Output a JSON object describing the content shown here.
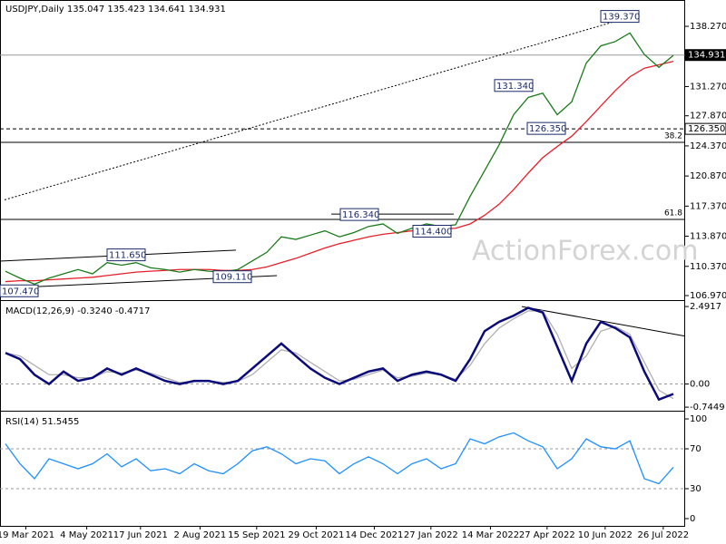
{
  "chart_data": [
    {
      "type": "line",
      "title": "USDJPY,Daily 135.047 135.423 134.641 134.931",
      "watermark": "ActionForex.com",
      "xlim": [
        -0.375,
        46.81
      ],
      "ylim": [
        106.55,
        141.33
      ],
      "yticks": [
        {
          "value": 106.97,
          "label": "106.970"
        },
        {
          "value": 110.37,
          "label": "110.370"
        },
        {
          "value": 113.87,
          "label": "113.870"
        },
        {
          "value": 117.37,
          "label": "117.370"
        },
        {
          "value": 120.87,
          "label": "120.870"
        },
        {
          "value": 124.37,
          "label": "124.370"
        },
        {
          "value": 127.87,
          "label": "127.870"
        },
        {
          "value": 131.27,
          "label": "131.270"
        },
        {
          "value": 134.77,
          "label": "134.770"
        },
        {
          "value": 138.27,
          "label": "138.270"
        }
      ],
      "series": [
        {
          "name": "USDJPY",
          "color": "#1a7a1a",
          "values": [
            109.8,
            109.0,
            108.3,
            109.0,
            109.5,
            110.0,
            109.5,
            110.8,
            110.5,
            110.8,
            110.2,
            110.0,
            109.7,
            110.0,
            109.8,
            109.7,
            110.0,
            111.0,
            112.0,
            113.8,
            113.5,
            114.0,
            114.5,
            113.8,
            114.3,
            115.0,
            115.3,
            114.2,
            114.8,
            115.3,
            115.0,
            115.2,
            118.5,
            121.5,
            124.5,
            128.0,
            130.0,
            130.5,
            128.0,
            129.5,
            134.0,
            136.0,
            136.5,
            137.5,
            135.0,
            133.5,
            134.9
          ]
        },
        {
          "name": "SMA",
          "color": "#e8202a",
          "values": [
            108.6,
            108.7,
            108.7,
            108.8,
            108.9,
            109.0,
            109.1,
            109.3,
            109.5,
            109.7,
            109.8,
            109.9,
            110.0,
            110.0,
            110.0,
            109.9,
            109.9,
            110.0,
            110.3,
            110.8,
            111.3,
            111.9,
            112.5,
            113.0,
            113.4,
            113.8,
            114.1,
            114.3,
            114.5,
            114.6,
            114.7,
            114.8,
            115.3,
            116.3,
            117.6,
            119.3,
            121.2,
            123.0,
            124.3,
            125.5,
            127.2,
            129.0,
            130.8,
            132.4,
            133.4,
            133.8,
            134.2
          ]
        }
      ],
      "levels": [
        {
          "value": 139.37,
          "label": "139.370"
        },
        {
          "value": 131.34,
          "label": "131.340"
        },
        {
          "value": 126.35,
          "label": "126.350"
        },
        {
          "value": 116.34,
          "label": "116.340"
        },
        {
          "value": 114.4,
          "label": "114.400"
        },
        {
          "value": 111.65,
          "label": "111.650"
        },
        {
          "value": 109.11,
          "label": "109.110"
        },
        {
          "value": 107.47,
          "label": "107.470"
        }
      ],
      "hlines": [
        {
          "value": 134.931,
          "label": "134.931",
          "style": "current"
        },
        {
          "value": 126.35,
          "label": "126.350",
          "style": "dashed"
        }
      ],
      "fib_lines": [
        {
          "ratio": 38.2,
          "price": 124.78
        },
        {
          "ratio": 61.8,
          "price": 115.83
        }
      ],
      "trendlines": [
        {
          "x": [
            -0.06,
            42.75
          ],
          "y": [
            118.1,
            139.22
          ],
          "style": "dotted"
        },
        {
          "x": [
            -0.375,
            15.87
          ],
          "y": [
            110.98,
            112.25
          ],
          "style": "solid"
        },
        {
          "x": [
            -0.375,
            18.69
          ],
          "y": [
            107.82,
            109.29
          ],
          "style": "solid"
        },
        {
          "x": [
            22.44,
            30.87
          ],
          "y": [
            116.45,
            116.45
          ],
          "style": "solid"
        }
      ]
    },
    {
      "type": "line",
      "title": "MACD(12,26,9) -0.3240 -0.4717",
      "xlim": [
        -0.375,
        46.81
      ],
      "ylim": [
        -0.83,
        2.64
      ],
      "yticks": [
        2.4917,
        {
          "value": 0,
          "label": "0.00"
        },
        -0.7449
      ],
      "dashed_levels": [
        0
      ],
      "series": [
        {
          "name": "MACD",
          "color": "#0a0a7a",
          "values": [
            1.0,
            0.8,
            0.3,
            0.0,
            0.4,
            0.1,
            0.2,
            0.5,
            0.3,
            0.5,
            0.3,
            0.1,
            0.0,
            0.1,
            0.1,
            0.0,
            0.1,
            0.5,
            0.9,
            1.3,
            0.9,
            0.5,
            0.2,
            0.0,
            0.2,
            0.4,
            0.5,
            0.1,
            0.3,
            0.4,
            0.3,
            0.1,
            0.8,
            1.7,
            2.0,
            2.2,
            2.45,
            2.3,
            1.2,
            0.1,
            1.3,
            2.0,
            1.8,
            1.5,
            0.4,
            -0.5,
            -0.32
          ]
        },
        {
          "name": "Signal",
          "color": "#b0b0b0",
          "values": [
            1.0,
            0.9,
            0.6,
            0.3,
            0.3,
            0.2,
            0.2,
            0.4,
            0.35,
            0.45,
            0.35,
            0.2,
            0.05,
            0.08,
            0.1,
            0.05,
            0.08,
            0.3,
            0.7,
            1.1,
            1.0,
            0.7,
            0.4,
            0.1,
            0.15,
            0.3,
            0.45,
            0.2,
            0.25,
            0.35,
            0.3,
            0.15,
            0.6,
            1.3,
            1.8,
            2.1,
            2.35,
            2.35,
            1.6,
            0.5,
            0.9,
            1.7,
            1.85,
            1.6,
            0.7,
            -0.2,
            -0.47
          ]
        }
      ],
      "trendlines": [
        {
          "x": [
            35.56,
            46.81
          ],
          "y": [
            2.49,
            1.54
          ],
          "style": "solid"
        }
      ]
    },
    {
      "type": "line",
      "title": "RSI(14) 51.5455",
      "xlim": [
        -0.375,
        46.81
      ],
      "ylim": [
        -7.3,
        106.4
      ],
      "yticks": [
        100,
        70,
        30,
        0
      ],
      "dashed_levels": [
        70,
        30
      ],
      "series": [
        {
          "name": "RSI",
          "color": "#1e90ff",
          "values": [
            75,
            55,
            40,
            60,
            55,
            50,
            55,
            65,
            52,
            60,
            48,
            50,
            45,
            55,
            48,
            45,
            55,
            68,
            72,
            65,
            55,
            60,
            58,
            45,
            55,
            62,
            55,
            45,
            55,
            60,
            50,
            55,
            80,
            75,
            82,
            86,
            78,
            72,
            50,
            60,
            80,
            72,
            70,
            78,
            40,
            35,
            51.5
          ]
        }
      ],
      "xticks": [
        {
          "value": 1.4,
          "label": "19 Mar 2021"
        },
        {
          "value": 5.6,
          "label": "4 May 2021"
        },
        {
          "value": 9.3,
          "label": "17 Jun 2021"
        },
        {
          "value": 13.4,
          "label": "2 Aug 2021"
        },
        {
          "value": 17.3,
          "label": "15 Sep 2021"
        },
        {
          "value": 21.4,
          "label": "29 Oct 2021"
        },
        {
          "value": 25.4,
          "label": "14 Dec 2021"
        },
        {
          "value": 29.3,
          "label": "27 Jan 2022"
        },
        {
          "value": 33.4,
          "label": "14 Mar 2022"
        },
        {
          "value": 37.3,
          "label": "27 Apr 2022"
        },
        {
          "value": 41.3,
          "label": "10 Jun 2022"
        },
        {
          "value": 45.3,
          "label": "26 Jul 2022"
        }
      ]
    }
  ]
}
